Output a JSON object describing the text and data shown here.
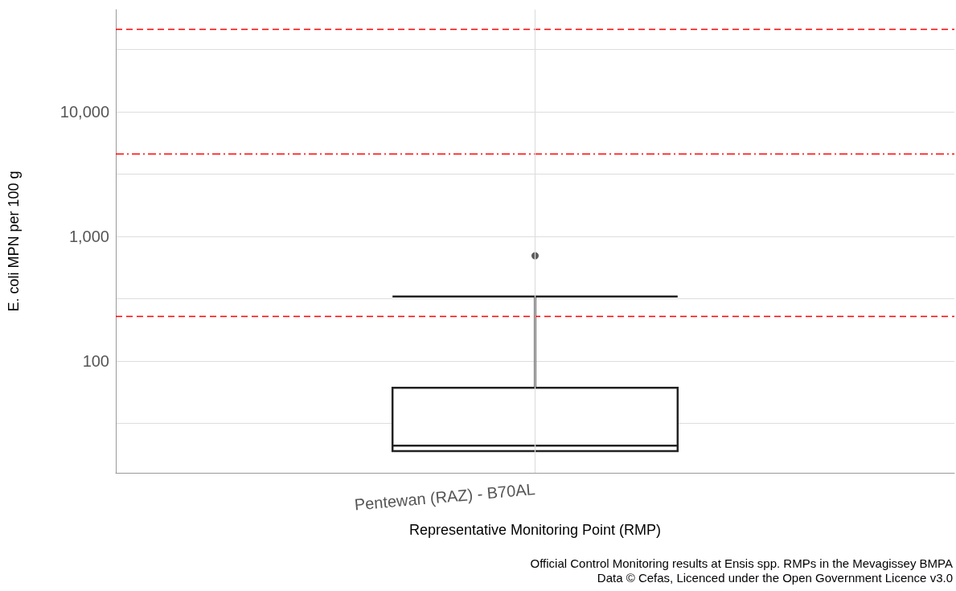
{
  "chart_data": {
    "type": "box",
    "xlabel": "Representative Monitoring Point (RMP)",
    "ylabel": "E. coli MPN per 100 g",
    "categories": [
      "Pentewan (RAZ) - B70AL"
    ],
    "boxes": [
      {
        "low": 19,
        "q1": 19,
        "median": 21,
        "q3": 61,
        "high": 330,
        "outliers": [
          700
        ]
      }
    ],
    "color": "#ffffff",
    "log": "y",
    "ylim": [
      12.7,
      66000
    ],
    "yticks": [
      {
        "value": 31.6,
        "label": null
      },
      100,
      {
        "value": 316,
        "label": null
      },
      {
        "value": 1000,
        "label": "1,000"
      },
      {
        "value": 3160,
        "label": null
      },
      {
        "value": 10000,
        "label": "10,000"
      },
      {
        "value": 31600,
        "label": null
      }
    ],
    "grid": true,
    "ref_lines": [
      {
        "axis": "y",
        "value": 230,
        "color": "#ff0000",
        "line_style": "dashed"
      },
      {
        "axis": "y",
        "value": 4600,
        "color": "#ff0000",
        "line_style": "dashdot"
      },
      {
        "axis": "y",
        "value": 46000,
        "color": "#ff0000",
        "line_style": "dashed"
      }
    ],
    "annotations": [
      "Official Control Monitoring results at Ensis spp. RMPs in the Mevagissey BMPA",
      "Data © Cefas, Licenced under the Open Government Licence v3.0"
    ]
  }
}
